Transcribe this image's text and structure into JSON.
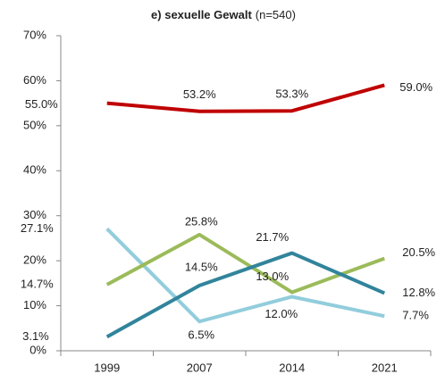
{
  "chart_data": {
    "type": "line",
    "title": "e) sexuelle Gewalt",
    "subtitle": "(n=540)",
    "categories": [
      "1999",
      "2007",
      "2014",
      "2021"
    ],
    "series": [
      {
        "color": "#c00000",
        "values": [
          55.0,
          53.2,
          53.3,
          59.0
        ],
        "value_labels": [
          "55.0%",
          "53.2%",
          "53.3%",
          "59.0%"
        ]
      },
      {
        "color": "#92cddc",
        "values": [
          27.1,
          6.5,
          12.0,
          7.7
        ],
        "value_labels": [
          "27.1%",
          "6.5%",
          "12.0%",
          "7.7%"
        ]
      },
      {
        "color": "#9bbb59",
        "values": [
          14.7,
          25.8,
          13.0,
          20.5
        ],
        "value_labels": [
          "14.7%",
          "25.8%",
          "13.0%",
          "20.5%"
        ]
      },
      {
        "color": "#31849b",
        "values": [
          3.1,
          14.5,
          21.7,
          12.8
        ],
        "value_labels": [
          "3.1%",
          "14.5%",
          "21.7%",
          "12.8%"
        ]
      }
    ],
    "ylim": [
      0,
      70
    ],
    "yticks": [
      {
        "value": 0,
        "label": "0%"
      },
      {
        "value": 10,
        "label": "10%"
      },
      {
        "value": 20,
        "label": "20%"
      },
      {
        "value": 30,
        "label": "30%"
      },
      {
        "value": 40,
        "label": "40%"
      },
      {
        "value": 50,
        "label": "50%"
      },
      {
        "value": 60,
        "label": "60%"
      },
      {
        "value": 70,
        "label": "70%"
      }
    ],
    "grid": false
  }
}
